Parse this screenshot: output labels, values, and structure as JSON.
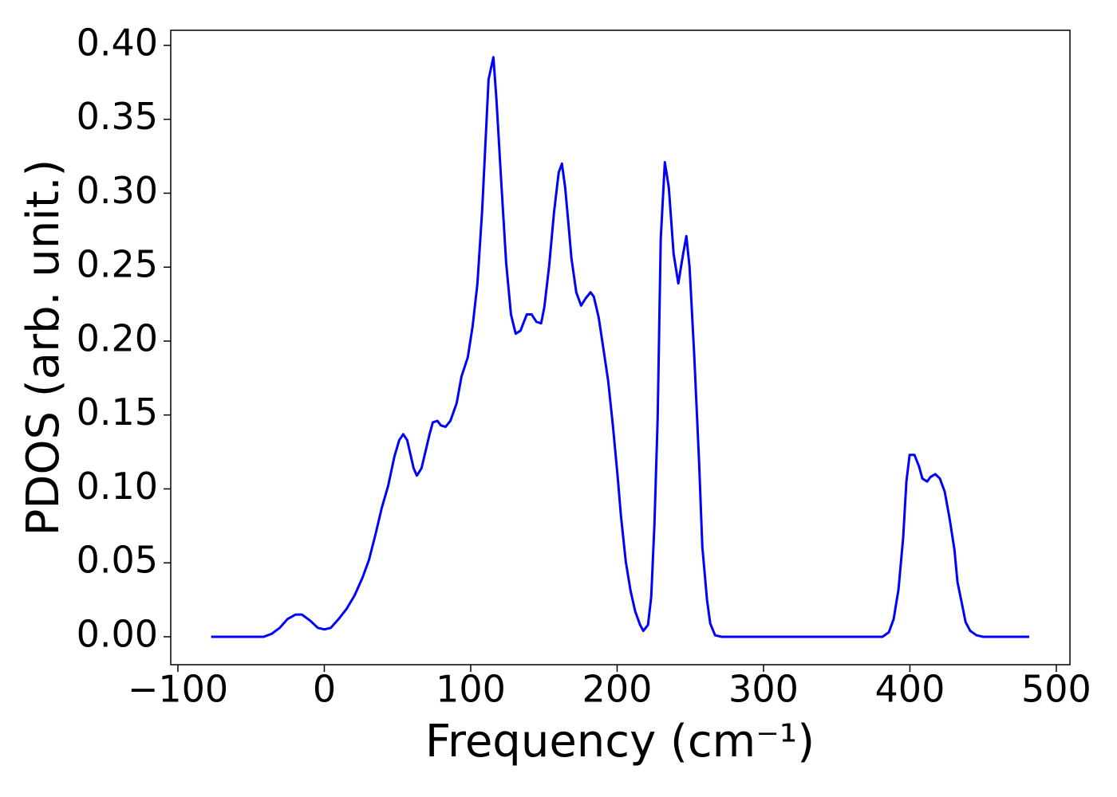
{
  "chart_data": {
    "type": "line",
    "xlabel": "Frequency (cm⁻¹)",
    "ylabel": "PDOS (arb. unit.)",
    "color": "#0000ff",
    "x": [
      -77.3,
      -41.4,
      -35.9,
      -30.5,
      -25.1,
      -19.6,
      -15.3,
      -9.8,
      -4.4,
      0,
      4.4,
      9.8,
      15.3,
      20.7,
      26.1,
      30.5,
      34.9,
      39.2,
      43.6,
      47.9,
      51.2,
      53.9,
      56.6,
      61.0,
      63.2,
      66.4,
      71.9,
      74.1,
      77.3,
      79.5,
      82.8,
      86.1,
      90.4,
      93.7,
      98.0,
      101.3,
      104.6,
      107.8,
      112.2,
      115.5,
      117.6,
      120.9,
      124.2,
      127.5,
      130.7,
      134.0,
      138.3,
      141.6,
      144.9,
      148.1,
      150.3,
      153.6,
      156.9,
      160.1,
      162.3,
      164.5,
      166.7,
      168.8,
      172.1,
      175.4,
      178.6,
      181.9,
      184.1,
      187.4,
      190.6,
      193.9,
      197.2,
      200.4,
      202.6,
      205.9,
      209.2,
      212.4,
      215.7,
      217.9,
      221.1,
      223.3,
      225.5,
      227.7,
      229.8,
      232.6,
      235.3,
      238.6,
      241.8,
      245.1,
      247.3,
      249.5,
      252.7,
      256.0,
      258.2,
      261.4,
      263.6,
      266.9,
      271.2,
      381.3,
      385.6,
      388.9,
      392.2,
      395.4,
      397.6,
      399.8,
      403.1,
      406.3,
      408.5,
      411.8,
      414.0,
      417.3,
      420.5,
      423.8,
      427.1,
      430.4,
      432.5,
      435.8,
      438.0,
      441.2,
      445.5,
      449.9,
      481.5
    ],
    "values": [
      0,
      0,
      0.002,
      0.006,
      0.012,
      0.015,
      0.015,
      0.011,
      0.006,
      0.005,
      0.006,
      0.012,
      0.019,
      0.028,
      0.04,
      0.052,
      0.069,
      0.087,
      0.102,
      0.122,
      0.133,
      0.137,
      0.133,
      0.114,
      0.109,
      0.114,
      0.137,
      0.145,
      0.146,
      0.143,
      0.142,
      0.146,
      0.158,
      0.176,
      0.189,
      0.21,
      0.239,
      0.288,
      0.377,
      0.392,
      0.363,
      0.307,
      0.253,
      0.218,
      0.205,
      0.207,
      0.218,
      0.218,
      0.213,
      0.212,
      0.223,
      0.251,
      0.287,
      0.314,
      0.32,
      0.304,
      0.28,
      0.256,
      0.233,
      0.224,
      0.229,
      0.233,
      0.23,
      0.216,
      0.195,
      0.173,
      0.142,
      0.108,
      0.082,
      0.051,
      0.031,
      0.017,
      0.008,
      0.004,
      0.008,
      0.027,
      0.076,
      0.148,
      0.269,
      0.321,
      0.304,
      0.259,
      0.239,
      0.259,
      0.271,
      0.25,
      0.19,
      0.118,
      0.061,
      0.025,
      0.009,
      0.001,
      0,
      0,
      0.003,
      0.012,
      0.032,
      0.067,
      0.105,
      0.123,
      0.123,
      0.115,
      0.107,
      0.105,
      0.108,
      0.11,
      0.107,
      0.098,
      0.08,
      0.059,
      0.037,
      0.021,
      0.01,
      0.004,
      0.001,
      0,
      0
    ],
    "xlim": [
      -104.9,
      509.3
    ],
    "ylim": [
      -0.0189,
      0.4102
    ],
    "xticks": [
      {
        "value": -100,
        "label": "−100"
      },
      0,
      100,
      200,
      300,
      400,
      500
    ],
    "yticks": [
      {
        "value": 0,
        "label": "0.00"
      },
      {
        "value": 0.05,
        "label": "0.05"
      },
      {
        "value": 0.1,
        "label": "0.10"
      },
      {
        "value": 0.15,
        "label": "0.15"
      },
      {
        "value": 0.2,
        "label": "0.20"
      },
      {
        "value": 0.25,
        "label": "0.25"
      },
      {
        "value": 0.3,
        "label": "0.30"
      },
      {
        "value": 0.35,
        "label": "0.35"
      },
      {
        "value": 0.4,
        "label": "0.40"
      }
    ],
    "grid": false
  }
}
